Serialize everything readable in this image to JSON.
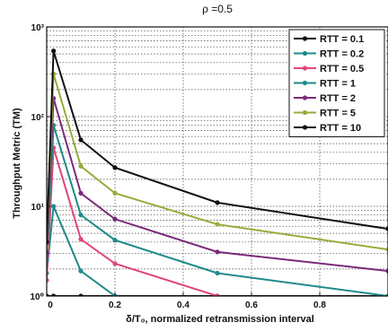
{
  "chart_data": {
    "type": "line",
    "title": "ρ =0.5",
    "xlabel": "δ/T₀, normalized retransmission interval",
    "ylabel": "Throughput Metric (TM)",
    "xlim": [
      0,
      1
    ],
    "ylim": [
      1,
      1000
    ],
    "yscale": "log",
    "grid": true,
    "legend_position": "top-right",
    "x_ticks": [
      {
        "value": 0,
        "label": "0"
      },
      {
        "value": 0.2,
        "label": "0.2"
      },
      {
        "value": 0.4,
        "label": "0.4"
      },
      {
        "value": 0.6,
        "label": "0.6"
      },
      {
        "value": 0.8,
        "label": "0.8"
      }
    ],
    "y_ticks": [
      {
        "value": 1,
        "label": "10⁰"
      },
      {
        "value": 10,
        "label": "10¹"
      },
      {
        "value": 100,
        "label": "10²"
      },
      {
        "value": 1000,
        "label": "10³"
      }
    ],
    "series": [
      {
        "name": "RTT = 0.1",
        "color": "#111111",
        "x": [
          0.0,
          0.02,
          0.1,
          0.2,
          0.5,
          1.0
        ],
        "y": [
          1,
          1,
          1,
          1,
          1,
          1
        ]
      },
      {
        "name": "RTT = 0.2",
        "color": "#1f8a8a",
        "x": [
          0.0,
          0.02,
          0.1,
          0.2
        ],
        "y": [
          1.8,
          10,
          1.9,
          1.0
        ]
      },
      {
        "name": "RTT = 0.5",
        "color": "#e0457a",
        "x": [
          0.0,
          0.02,
          0.1,
          0.2,
          0.5
        ],
        "y": [
          1.5,
          45,
          4.3,
          2.3,
          1.0
        ]
      },
      {
        "name": "RTT = 1",
        "color": "#1f8a8a",
        "x": [
          0.0,
          0.02,
          0.1,
          0.2,
          0.5,
          1.0
        ],
        "y": [
          2.5,
          80,
          8.0,
          4.2,
          1.8,
          1.0
        ]
      },
      {
        "name": "RTT = 2",
        "color": "#7a2a7a",
        "x": [
          0.0,
          0.02,
          0.1,
          0.2,
          0.5,
          1.0
        ],
        "y": [
          3.0,
          160,
          14,
          7.2,
          3.1,
          1.9
        ]
      },
      {
        "name": "RTT = 5",
        "color": "#9aaa3a",
        "x": [
          0.0,
          0.02,
          0.1,
          0.2,
          0.5,
          1.0
        ],
        "y": [
          3.5,
          300,
          28,
          14,
          6.3,
          3.3
        ]
      },
      {
        "name": "RTT = 10",
        "color": "#111111",
        "x": [
          0.0,
          0.02,
          0.1,
          0.2,
          0.5,
          1.0
        ],
        "y": [
          4.0,
          540,
          55,
          27,
          11,
          5.6
        ]
      }
    ]
  }
}
